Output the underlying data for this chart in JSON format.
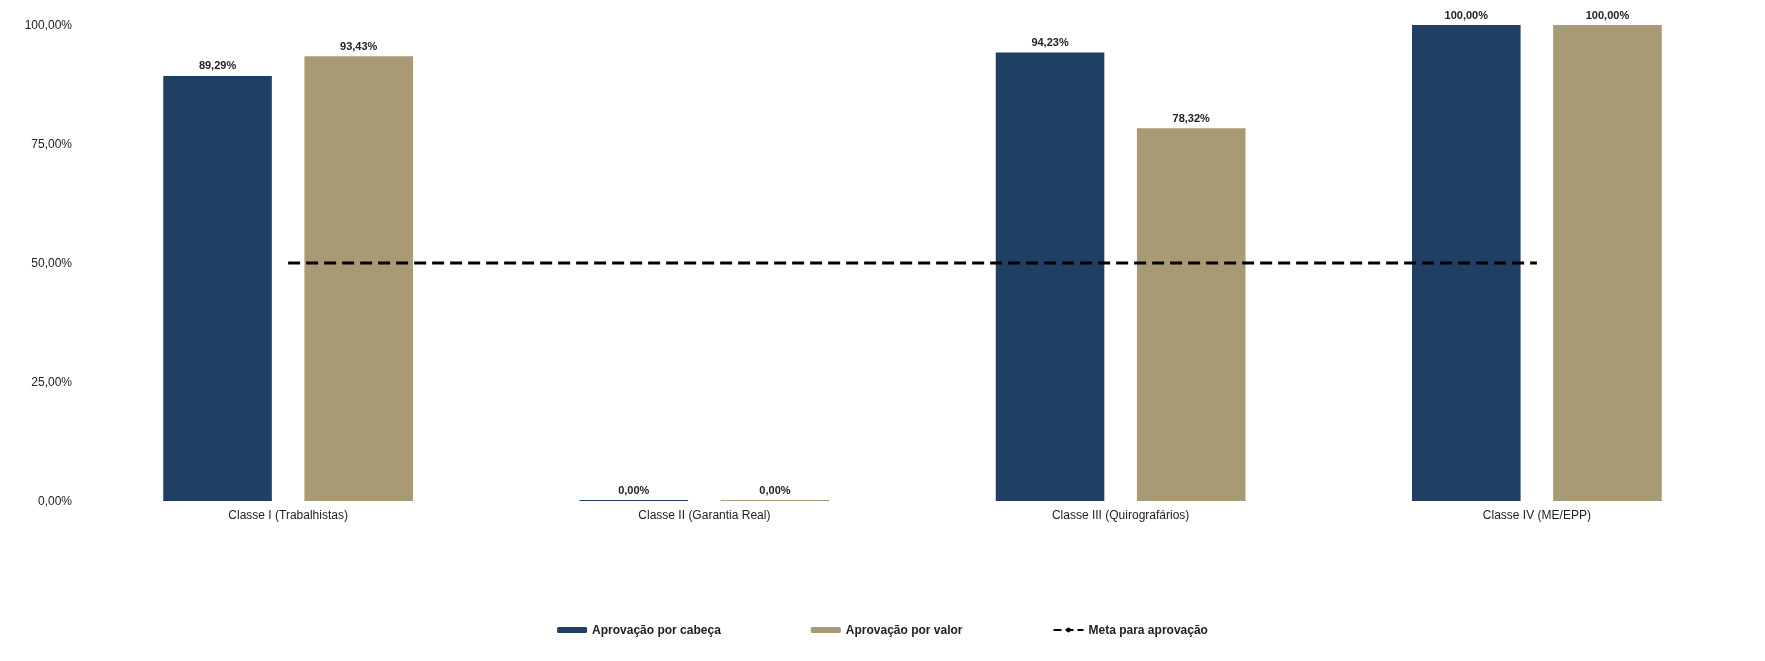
{
  "chart_data": {
    "type": "bar",
    "categories": [
      "Classe I (Trabalhistas)",
      "Classe II (Garantia Real)",
      "Classe III (Quirografários)",
      "Classe IV (ME/EPP)"
    ],
    "series": [
      {
        "name": "Aprovação por cabeça",
        "color": "#1f3f63",
        "values": [
          89.29,
          0,
          94.23,
          100
        ],
        "value_labels": [
          "89,29%",
          "0,00%",
          "94,23%",
          "100,00%"
        ]
      },
      {
        "name": "Aprovação por valor",
        "color": "#a89a74",
        "values": [
          93.43,
          0,
          78.32,
          100
        ],
        "value_labels": [
          "93,43%",
          "0,00%",
          "78,32%",
          "100,00%"
        ]
      },
      {
        "name": "Meta para aprovação",
        "type": "line",
        "color": "#000000",
        "line_style": "dashed",
        "marker": "none",
        "values": [
          50,
          50,
          50,
          50
        ]
      }
    ],
    "ylim": [
      0,
      100
    ],
    "yticks": [
      {
        "value": 0,
        "label": "0,00%"
      },
      {
        "value": 25,
        "label": "25,00%"
      },
      {
        "value": 50,
        "label": "50,00%"
      },
      {
        "value": 75,
        "label": "75,00%"
      },
      {
        "value": 100,
        "label": "100,00%"
      }
    ],
    "grid": false,
    "legend": "bottom"
  }
}
